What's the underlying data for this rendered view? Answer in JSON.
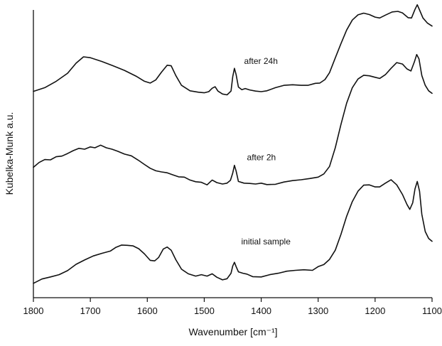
{
  "chart_data": {
    "type": "line",
    "title": "",
    "xlabel": "Wavenumber [cm⁻¹]",
    "ylabel": "Kubelka-Munk a.u.",
    "x_reversed": true,
    "xlim": [
      1800,
      1100
    ],
    "x_ticks": [
      1800,
      1700,
      1600,
      1500,
      1400,
      1300,
      1200,
      1100
    ],
    "y_ticks_shown": false,
    "grid": false,
    "ylim": [
      0,
      1
    ],
    "series": [
      {
        "name": "after 24h",
        "points": [
          [
            1800,
            0.717
          ],
          [
            1780,
            0.73
          ],
          [
            1760,
            0.752
          ],
          [
            1740,
            0.78
          ],
          [
            1725,
            0.815
          ],
          [
            1712,
            0.837
          ],
          [
            1700,
            0.834
          ],
          [
            1680,
            0.821
          ],
          [
            1660,
            0.806
          ],
          [
            1640,
            0.79
          ],
          [
            1620,
            0.77
          ],
          [
            1605,
            0.752
          ],
          [
            1595,
            0.746
          ],
          [
            1585,
            0.757
          ],
          [
            1575,
            0.784
          ],
          [
            1565,
            0.808
          ],
          [
            1558,
            0.806
          ],
          [
            1550,
            0.772
          ],
          [
            1540,
            0.738
          ],
          [
            1525,
            0.719
          ],
          [
            1510,
            0.714
          ],
          [
            1500,
            0.712
          ],
          [
            1492,
            0.716
          ],
          [
            1486,
            0.728
          ],
          [
            1481,
            0.733
          ],
          [
            1476,
            0.718
          ],
          [
            1468,
            0.708
          ],
          [
            1460,
            0.705
          ],
          [
            1453,
            0.718
          ],
          [
            1450,
            0.768
          ],
          [
            1447,
            0.797
          ],
          [
            1444,
            0.775
          ],
          [
            1440,
            0.732
          ],
          [
            1434,
            0.723
          ],
          [
            1428,
            0.727
          ],
          [
            1420,
            0.722
          ],
          [
            1410,
            0.718
          ],
          [
            1400,
            0.716
          ],
          [
            1390,
            0.719
          ],
          [
            1375,
            0.73
          ],
          [
            1360,
            0.738
          ],
          [
            1345,
            0.74
          ],
          [
            1330,
            0.738
          ],
          [
            1318,
            0.738
          ],
          [
            1305,
            0.745
          ],
          [
            1297,
            0.746
          ],
          [
            1288,
            0.758
          ],
          [
            1280,
            0.782
          ],
          [
            1270,
            0.833
          ],
          [
            1260,
            0.883
          ],
          [
            1250,
            0.93
          ],
          [
            1240,
            0.965
          ],
          [
            1230,
            0.983
          ],
          [
            1220,
            0.989
          ],
          [
            1210,
            0.984
          ],
          [
            1200,
            0.975
          ],
          [
            1192,
            0.972
          ],
          [
            1182,
            0.982
          ],
          [
            1170,
            0.993
          ],
          [
            1160,
            0.995
          ],
          [
            1152,
            0.99
          ],
          [
            1142,
            0.973
          ],
          [
            1136,
            0.972
          ],
          [
            1130,
            1.002
          ],
          [
            1126,
            1.018
          ],
          [
            1122,
            1.0
          ],
          [
            1116,
            0.972
          ],
          [
            1108,
            0.954
          ],
          [
            1100,
            0.944
          ]
        ]
      },
      {
        "name": "after 2h",
        "points": [
          [
            1800,
            0.453
          ],
          [
            1790,
            0.47
          ],
          [
            1780,
            0.48
          ],
          [
            1770,
            0.479
          ],
          [
            1760,
            0.49
          ],
          [
            1750,
            0.492
          ],
          [
            1740,
            0.501
          ],
          [
            1730,
            0.511
          ],
          [
            1720,
            0.519
          ],
          [
            1710,
            0.516
          ],
          [
            1700,
            0.524
          ],
          [
            1692,
            0.521
          ],
          [
            1682,
            0.53
          ],
          [
            1672,
            0.521
          ],
          [
            1662,
            0.516
          ],
          [
            1652,
            0.509
          ],
          [
            1640,
            0.499
          ],
          [
            1628,
            0.493
          ],
          [
            1616,
            0.478
          ],
          [
            1605,
            0.463
          ],
          [
            1595,
            0.45
          ],
          [
            1585,
            0.441
          ],
          [
            1575,
            0.437
          ],
          [
            1565,
            0.434
          ],
          [
            1555,
            0.427
          ],
          [
            1545,
            0.42
          ],
          [
            1535,
            0.419
          ],
          [
            1525,
            0.409
          ],
          [
            1515,
            0.403
          ],
          [
            1505,
            0.401
          ],
          [
            1495,
            0.392
          ],
          [
            1486,
            0.409
          ],
          [
            1478,
            0.4
          ],
          [
            1468,
            0.395
          ],
          [
            1460,
            0.398
          ],
          [
            1454,
            0.408
          ],
          [
            1450,
            0.433
          ],
          [
            1447,
            0.46
          ],
          [
            1444,
            0.44
          ],
          [
            1440,
            0.404
          ],
          [
            1430,
            0.398
          ],
          [
            1420,
            0.397
          ],
          [
            1410,
            0.395
          ],
          [
            1400,
            0.398
          ],
          [
            1390,
            0.393
          ],
          [
            1375,
            0.394
          ],
          [
            1360,
            0.402
          ],
          [
            1345,
            0.407
          ],
          [
            1330,
            0.41
          ],
          [
            1315,
            0.414
          ],
          [
            1300,
            0.419
          ],
          [
            1290,
            0.43
          ],
          [
            1280,
            0.456
          ],
          [
            1270,
            0.521
          ],
          [
            1260,
            0.602
          ],
          [
            1250,
            0.676
          ],
          [
            1240,
            0.73
          ],
          [
            1230,
            0.76
          ],
          [
            1220,
            0.773
          ],
          [
            1210,
            0.771
          ],
          [
            1200,
            0.766
          ],
          [
            1192,
            0.762
          ],
          [
            1182,
            0.775
          ],
          [
            1172,
            0.797
          ],
          [
            1162,
            0.817
          ],
          [
            1152,
            0.812
          ],
          [
            1144,
            0.795
          ],
          [
            1137,
            0.788
          ],
          [
            1131,
            0.82
          ],
          [
            1127,
            0.845
          ],
          [
            1123,
            0.83
          ],
          [
            1118,
            0.772
          ],
          [
            1112,
            0.738
          ],
          [
            1106,
            0.719
          ],
          [
            1100,
            0.71
          ]
        ]
      },
      {
        "name": "initial sample",
        "points": [
          [
            1800,
            0.05
          ],
          [
            1785,
            0.065
          ],
          [
            1770,
            0.072
          ],
          [
            1755,
            0.08
          ],
          [
            1740,
            0.094
          ],
          [
            1725,
            0.116
          ],
          [
            1710,
            0.131
          ],
          [
            1695,
            0.145
          ],
          [
            1680,
            0.154
          ],
          [
            1665,
            0.162
          ],
          [
            1655,
            0.175
          ],
          [
            1645,
            0.183
          ],
          [
            1635,
            0.182
          ],
          [
            1625,
            0.18
          ],
          [
            1615,
            0.17
          ],
          [
            1605,
            0.152
          ],
          [
            1595,
            0.13
          ],
          [
            1587,
            0.128
          ],
          [
            1580,
            0.14
          ],
          [
            1572,
            0.169
          ],
          [
            1565,
            0.176
          ],
          [
            1558,
            0.165
          ],
          [
            1550,
            0.132
          ],
          [
            1540,
            0.099
          ],
          [
            1528,
            0.083
          ],
          [
            1515,
            0.075
          ],
          [
            1505,
            0.08
          ],
          [
            1495,
            0.075
          ],
          [
            1486,
            0.083
          ],
          [
            1478,
            0.071
          ],
          [
            1468,
            0.062
          ],
          [
            1460,
            0.066
          ],
          [
            1453,
            0.085
          ],
          [
            1450,
            0.11
          ],
          [
            1447,
            0.123
          ],
          [
            1444,
            0.108
          ],
          [
            1440,
            0.09
          ],
          [
            1432,
            0.085
          ],
          [
            1425,
            0.082
          ],
          [
            1415,
            0.073
          ],
          [
            1400,
            0.072
          ],
          [
            1385,
            0.08
          ],
          [
            1370,
            0.085
          ],
          [
            1355,
            0.092
          ],
          [
            1340,
            0.095
          ],
          [
            1325,
            0.097
          ],
          [
            1310,
            0.095
          ],
          [
            1300,
            0.108
          ],
          [
            1290,
            0.115
          ],
          [
            1280,
            0.133
          ],
          [
            1270,
            0.165
          ],
          [
            1260,
            0.22
          ],
          [
            1250,
            0.283
          ],
          [
            1240,
            0.334
          ],
          [
            1230,
            0.37
          ],
          [
            1220,
            0.391
          ],
          [
            1210,
            0.392
          ],
          [
            1200,
            0.385
          ],
          [
            1192,
            0.385
          ],
          [
            1182,
            0.398
          ],
          [
            1172,
            0.41
          ],
          [
            1162,
            0.392
          ],
          [
            1152,
            0.359
          ],
          [
            1144,
            0.324
          ],
          [
            1139,
            0.307
          ],
          [
            1134,
            0.33
          ],
          [
            1130,
            0.378
          ],
          [
            1126,
            0.404
          ],
          [
            1122,
            0.37
          ],
          [
            1118,
            0.29
          ],
          [
            1112,
            0.23
          ],
          [
            1106,
            0.206
          ],
          [
            1100,
            0.196
          ]
        ]
      }
    ],
    "annotations": [
      {
        "text": "after 24h",
        "x": 1430,
        "y": 0.812
      },
      {
        "text": "after 2h",
        "x": 1425,
        "y": 0.478
      },
      {
        "text": "initial sample",
        "x": 1435,
        "y": 0.185
      }
    ]
  }
}
